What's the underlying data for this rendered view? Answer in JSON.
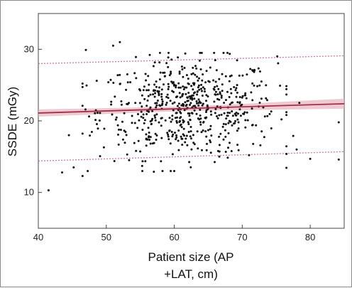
{
  "chart_data": {
    "type": "scatter",
    "title": "",
    "xlabel_lines": [
      "Patient size (AP",
      "+LAT, cm)"
    ],
    "ylabel": "SSDE (mGy)",
    "xlim": [
      40,
      85
    ],
    "ylim": [
      5,
      35
    ],
    "x_ticks": [
      40,
      50,
      60,
      70,
      80
    ],
    "y_ticks": [
      10,
      20,
      30
    ],
    "grid": false,
    "colors": {
      "points": "#111111",
      "fit": "#a0304a",
      "band": "#e8b7c1",
      "limits": "#d07b8d"
    },
    "fit_line": {
      "x": [
        40,
        85
      ],
      "y": [
        21.1,
        22.4
      ]
    },
    "confidence_band": {
      "x": [
        40,
        62,
        85
      ],
      "lower": [
        20.6,
        21.4,
        21.7
      ],
      "upper": [
        21.6,
        22.0,
        23.1
      ]
    },
    "prediction_limits": {
      "lower": {
        "x": [
          40,
          85
        ],
        "y": [
          14.4,
          15.7
        ]
      },
      "upper": {
        "x": [
          40,
          85
        ],
        "y": [
          28.0,
          29.1
        ]
      }
    },
    "scatter_summary": {
      "n_points": 620,
      "x_center": 62,
      "x_spread": 6.5,
      "y_spread": 3.4,
      "sample_points": [
        [
          41.5,
          10.3
        ],
        [
          43.5,
          12.8
        ],
        [
          44.5,
          18.0
        ],
        [
          45.2,
          13.5
        ],
        [
          46.5,
          12.3
        ],
        [
          47,
          29.9
        ],
        [
          51,
          30.5
        ],
        [
          52,
          31.0
        ],
        [
          77.5,
          17.9
        ],
        [
          78,
          16.0
        ],
        [
          78.4,
          22.5
        ],
        [
          80,
          14.7
        ],
        [
          84.2,
          14.6
        ],
        [
          84.2,
          19.8
        ],
        [
          57,
          12.9
        ],
        [
          71,
          15.2
        ]
      ]
    }
  }
}
